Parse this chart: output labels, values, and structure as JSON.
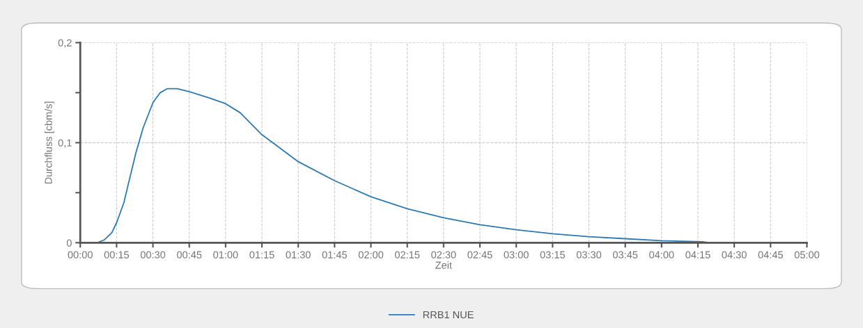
{
  "chart_data": {
    "type": "line",
    "xlabel": "Zeit",
    "ylabel": "Durchfluss [cbm/s]",
    "x": [
      0,
      0.117,
      0.167,
      0.217,
      0.25,
      0.3,
      0.333,
      0.383,
      0.433,
      0.5,
      0.55,
      0.6,
      0.667,
      0.75,
      0.883,
      1.0,
      1.1,
      1.25,
      1.417,
      1.5,
      1.75,
      2.0,
      2.25,
      2.5,
      2.75,
      3.0,
      3.25,
      3.5,
      3.75,
      4.0,
      4.283,
      4.333,
      5.0
    ],
    "series": [
      {
        "name": "RRB1 NUE",
        "color": "#2a7ab8",
        "values": [
          0,
          0,
          0.003,
          0.01,
          0.02,
          0.04,
          0.06,
          0.09,
          0.115,
          0.14,
          0.15,
          0.154,
          0.154,
          0.151,
          0.145,
          0.139,
          0.13,
          0.108,
          0.09,
          0.081,
          0.062,
          0.046,
          0.034,
          0.025,
          0.018,
          0.013,
          0.009,
          0.006,
          0.004,
          0.002,
          0.001,
          0,
          0
        ]
      }
    ],
    "xlim": [
      0,
      5
    ],
    "xticks": [
      {
        "value": 0,
        "label": "00:00"
      },
      {
        "value": 0.25,
        "label": "00:15"
      },
      {
        "value": 0.5,
        "label": "00:30"
      },
      {
        "value": 0.75,
        "label": "00:45"
      },
      {
        "value": 1,
        "label": "01:00"
      },
      {
        "value": 1.25,
        "label": "01:15"
      },
      {
        "value": 1.5,
        "label": "01:30"
      },
      {
        "value": 1.75,
        "label": "01:45"
      },
      {
        "value": 2,
        "label": "02:00"
      },
      {
        "value": 2.25,
        "label": "02:15"
      },
      {
        "value": 2.5,
        "label": "02:30"
      },
      {
        "value": 2.75,
        "label": "02:45"
      },
      {
        "value": 3,
        "label": "03:00"
      },
      {
        "value": 3.25,
        "label": "03:15"
      },
      {
        "value": 3.5,
        "label": "03:30"
      },
      {
        "value": 3.75,
        "label": "03:45"
      },
      {
        "value": 4,
        "label": "04:00"
      },
      {
        "value": 4.25,
        "label": "04:15"
      },
      {
        "value": 4.5,
        "label": "04:30"
      },
      {
        "value": 4.75,
        "label": "04:45"
      },
      {
        "value": 5,
        "label": "05:00"
      }
    ],
    "ylim": [
      0,
      0.2
    ],
    "yticks": [
      {
        "value": 0,
        "label": "0"
      },
      {
        "value": 0.05,
        "label": null
      },
      {
        "value": 0.1,
        "label": "0,1"
      },
      {
        "value": 0.15,
        "label": null
      },
      {
        "value": 0.2,
        "label": "0,2"
      }
    ],
    "grid": true,
    "legend": "bottom",
    "marker": "none",
    "line_style": "solid"
  }
}
